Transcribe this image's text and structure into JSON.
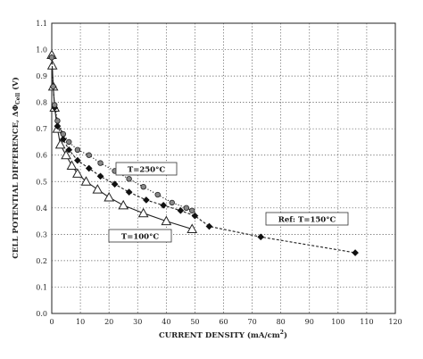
{
  "chart_data": {
    "type": "scatter",
    "xlabel_main": "CURRENT DENSITY (mA/cm",
    "xlabel_sup": "2",
    "xlabel_end": ")",
    "ylabel_main": "CELL POTENTIAL DIFFERENCE, ΔΦ",
    "ylabel_sub": "Cell",
    "ylabel_end": " (V)",
    "xlim": [
      0,
      120
    ],
    "ylim": [
      0,
      1.1
    ],
    "xticks": [
      "0",
      "10",
      "20",
      "30",
      "40",
      "50",
      "60",
      "70",
      "80",
      "90",
      "100",
      "110",
      "120"
    ],
    "yticks": [
      "0.0",
      "0.1",
      "0.2",
      "0.3",
      "0.4",
      "0.5",
      "0.6",
      "0.7",
      "0.8",
      "0.9",
      "1.0",
      "1.1"
    ],
    "grid": true,
    "series": [
      {
        "name": "T=100°C",
        "marker": "triangle",
        "line": "solid",
        "x": [
          0,
          0.2,
          0.5,
          1,
          2,
          3,
          5,
          7,
          9,
          12,
          16,
          20,
          25,
          32,
          40,
          49
        ],
        "y": [
          0.98,
          0.94,
          0.86,
          0.78,
          0.7,
          0.64,
          0.6,
          0.56,
          0.53,
          0.5,
          0.47,
          0.44,
          0.41,
          0.38,
          0.35,
          0.32
        ]
      },
      {
        "name": "Ref: T=150°C",
        "marker": "diamond",
        "line": "dashed",
        "x": [
          0,
          0.5,
          1,
          2,
          4,
          6,
          9,
          13,
          17,
          22,
          27,
          33,
          39,
          45,
          50,
          55,
          73,
          106
        ],
        "y": [
          0.97,
          0.86,
          0.78,
          0.71,
          0.66,
          0.62,
          0.58,
          0.55,
          0.52,
          0.49,
          0.46,
          0.43,
          0.41,
          0.39,
          0.37,
          0.33,
          0.29,
          0.23
        ]
      },
      {
        "name": "T=250°C",
        "marker": "circle",
        "line": "dotted",
        "x": [
          0,
          0.5,
          1,
          2,
          4,
          6,
          9,
          13,
          17,
          22,
          27,
          32,
          37,
          42,
          47,
          49
        ],
        "y": [
          0.97,
          0.86,
          0.79,
          0.73,
          0.68,
          0.65,
          0.62,
          0.6,
          0.57,
          0.54,
          0.51,
          0.48,
          0.45,
          0.42,
          0.4,
          0.39
        ]
      }
    ]
  }
}
